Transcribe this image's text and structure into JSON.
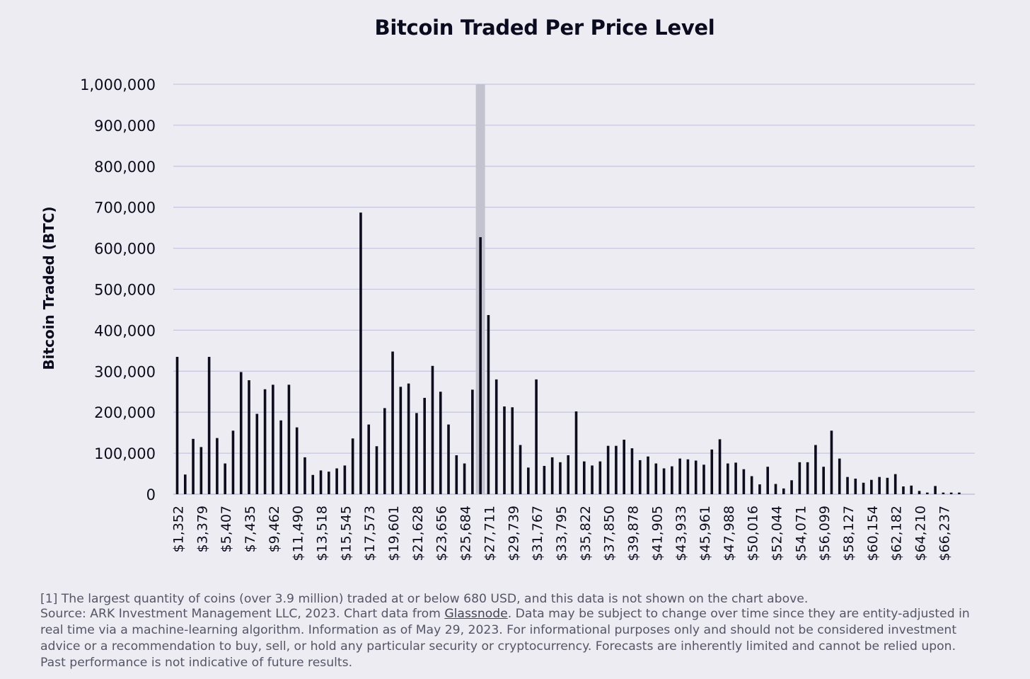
{
  "chart_data": {
    "type": "bar",
    "title": "Bitcoin Traded Per Price Level",
    "xlabel": "",
    "ylabel": "Bitcoin Traded (BTC)",
    "ylim": [
      0,
      1000000
    ],
    "yticks": [
      "0",
      "100,000",
      "200,000",
      "300,000",
      "400,000",
      "500,000",
      "600,000",
      "700,000",
      "800,000",
      "900,000",
      "1,000,000"
    ],
    "grid": true,
    "highlight_band_index": 38,
    "highlight_color": "#c3c3d0",
    "bar_color": "#0c0c1c",
    "grid_color": "#c7c7e0",
    "x_tick_labels": [
      "$1,352",
      "$3,379",
      "$5,407",
      "$7,435",
      "$9,462",
      "$11,490",
      "$13,518",
      "$15,545",
      "$17,573",
      "$19,601",
      "$21,628",
      "$23,656",
      "$25,684",
      "$27,711",
      "$29,739",
      "$31,767",
      "$33,795",
      "$35,822",
      "$37,850",
      "$39,878",
      "$41,905",
      "$43,933",
      "$45,961",
      "$47,988",
      "$50,016",
      "$52,044",
      "$54,071",
      "$56,099",
      "$58,127",
      "$60,154",
      "$62,182",
      "$64,210",
      "$66,237"
    ],
    "values": [
      335000,
      48000,
      135000,
      115000,
      335000,
      137000,
      75000,
      155000,
      298000,
      278000,
      196000,
      256000,
      267000,
      180000,
      267000,
      163000,
      90000,
      47000,
      58000,
      55000,
      63000,
      70000,
      136000,
      687000,
      170000,
      117000,
      210000,
      348000,
      262000,
      270000,
      198000,
      235000,
      313000,
      250000,
      170000,
      95000,
      75000,
      255000,
      627000,
      437000,
      280000,
      214000,
      212000,
      120000,
      65000,
      280000,
      69000,
      90000,
      78000,
      95000,
      202000,
      80000,
      70000,
      80000,
      118000,
      118000,
      133000,
      112000,
      83000,
      92000,
      75000,
      63000,
      68000,
      87000,
      85000,
      82000,
      72000,
      109000,
      134000,
      75000,
      77000,
      61000,
      44000,
      24000,
      67000,
      25000,
      14000,
      34000,
      78000,
      78000,
      120000,
      67000,
      155000,
      87000,
      42000,
      38000,
      28000,
      35000,
      42000,
      40000,
      49000,
      19000,
      21000,
      8000,
      4000,
      20000,
      4000,
      4000,
      4000
    ]
  },
  "footnotes": {
    "note1": "[1] The largest quantity of coins (over 3.9 million) traded at or below 680 USD, and this data is not shown on the chart above.",
    "source_prefix": "Source: ARK Investment Management LLC, 2023. Chart data from ",
    "source_link": "Glassnode",
    "source_suffix": ". Data may be subject to change over time since they are entity-adjusted in real time via a machine-learning algorithm. Information as of May 29, 2023. For informational purposes only and should not be considered investment advice or a recommendation to buy, sell, or hold any particular security or cryptocurrency. Forecasts are inherently limited and cannot be relied upon. Past performance is not indicative of future results."
  }
}
